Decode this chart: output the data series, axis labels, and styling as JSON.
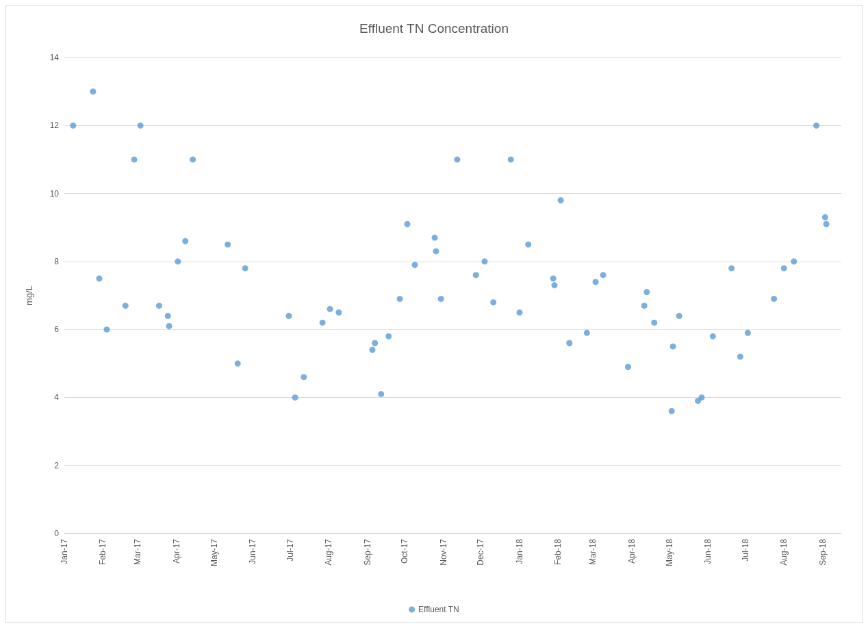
{
  "chart_data": {
    "type": "scatter",
    "title": "Effluent TN Concentration",
    "ylabel": "mg/L",
    "xlim": [
      "2017-01-01",
      "2018-09-16"
    ],
    "ylim": [
      0,
      14
    ],
    "yticks": [
      0,
      2,
      4,
      6,
      8,
      10,
      12,
      14
    ],
    "xticks": [
      {
        "value": "2017-01-01",
        "label": "Jan-17"
      },
      {
        "value": "2017-02-01",
        "label": "Feb-17"
      },
      {
        "value": "2017-03-01",
        "label": "Mar-17"
      },
      {
        "value": "2017-04-01",
        "label": "Apr-17"
      },
      {
        "value": "2017-05-01",
        "label": "May-17"
      },
      {
        "value": "2017-06-01",
        "label": "Jun-17"
      },
      {
        "value": "2017-07-01",
        "label": "Jul-17"
      },
      {
        "value": "2017-08-01",
        "label": "Aug-17"
      },
      {
        "value": "2017-09-01",
        "label": "Sep-17"
      },
      {
        "value": "2017-10-01",
        "label": "Oct-17"
      },
      {
        "value": "2017-11-01",
        "label": "Nov-17"
      },
      {
        "value": "2017-12-01",
        "label": "Dec-17"
      },
      {
        "value": "2018-01-01",
        "label": "Jan-18"
      },
      {
        "value": "2018-02-01",
        "label": "Feb-18"
      },
      {
        "value": "2018-03-01",
        "label": "Mar-18"
      },
      {
        "value": "2018-04-01",
        "label": "Apr-18"
      },
      {
        "value": "2018-05-01",
        "label": "May-18"
      },
      {
        "value": "2018-06-01",
        "label": "Jun-18"
      },
      {
        "value": "2018-07-01",
        "label": "Jul-18"
      },
      {
        "value": "2018-08-01",
        "label": "Aug-18"
      },
      {
        "value": "2018-09-01",
        "label": "Sep-18"
      }
    ],
    "grid": "y",
    "legend": "bottom",
    "marker": "circle",
    "series": [
      {
        "name": "Effluent TN",
        "color": "#5b9bd5",
        "x": [
          "2017-01-08",
          "2017-01-24",
          "2017-01-29",
          "2017-02-04",
          "2017-02-19",
          "2017-02-26",
          "2017-03-03",
          "2017-03-18",
          "2017-03-25",
          "2017-03-26",
          "2017-04-02",
          "2017-04-08",
          "2017-04-14",
          "2017-05-12",
          "2017-05-20",
          "2017-05-26",
          "2017-06-30",
          "2017-07-05",
          "2017-07-12",
          "2017-07-27",
          "2017-08-02",
          "2017-08-09",
          "2017-09-05",
          "2017-09-07",
          "2017-09-12",
          "2017-09-18",
          "2017-09-27",
          "2017-10-03",
          "2017-10-09",
          "2017-10-25",
          "2017-10-26",
          "2017-10-30",
          "2017-11-12",
          "2017-11-27",
          "2017-12-04",
          "2017-12-11",
          "2017-12-25",
          "2018-01-01",
          "2018-01-08",
          "2018-01-28",
          "2018-01-29",
          "2018-02-03",
          "2018-02-10",
          "2018-02-24",
          "2018-03-03",
          "2018-03-09",
          "2018-03-29",
          "2018-04-11",
          "2018-04-13",
          "2018-04-19",
          "2018-05-03",
          "2018-05-04",
          "2018-05-09",
          "2018-05-24",
          "2018-05-27",
          "2018-06-05",
          "2018-06-20",
          "2018-06-27",
          "2018-07-03",
          "2018-07-24",
          "2018-08-01",
          "2018-08-09",
          "2018-08-27",
          "2018-09-03",
          "2018-09-04"
        ],
        "values": [
          12,
          13,
          7.5,
          6,
          6.7,
          11,
          12,
          6.7,
          6.4,
          6.1,
          8,
          8.6,
          11,
          8.5,
          5,
          7.8,
          6.4,
          4,
          4.6,
          6.2,
          6.6,
          6.5,
          5.4,
          5.6,
          4.1,
          5.8,
          6.9,
          9.1,
          7.9,
          8.7,
          8.3,
          6.9,
          11,
          7.6,
          8,
          6.8,
          11,
          6.5,
          8.5,
          7.5,
          7.3,
          9.8,
          5.6,
          5.9,
          7.4,
          7.6,
          4.9,
          6.7,
          7.1,
          6.2,
          3.6,
          5.5,
          6.4,
          3.9,
          4,
          5.8,
          7.8,
          5.2,
          5.9,
          6.9,
          7.8,
          8,
          12,
          9.3,
          9.1
        ]
      }
    ]
  }
}
